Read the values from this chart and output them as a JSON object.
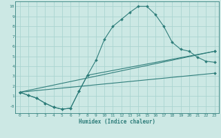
{
  "xlabel": "Humidex (Indice chaleur)",
  "bg_color": "#cce8e4",
  "grid_color": "#aad4d0",
  "line_color": "#2e7d7a",
  "xlim": [
    -0.5,
    23.5
  ],
  "ylim": [
    -0.7,
    10.5
  ],
  "xticks": [
    0,
    1,
    2,
    3,
    4,
    5,
    6,
    7,
    8,
    9,
    10,
    11,
    12,
    13,
    14,
    15,
    16,
    17,
    18,
    19,
    20,
    21,
    22,
    23
  ],
  "yticks": [
    0,
    1,
    2,
    3,
    4,
    5,
    6,
    7,
    8,
    9,
    10
  ],
  "curve1_x": [
    0,
    1,
    2,
    3,
    4,
    5,
    6,
    7,
    8,
    9,
    10,
    11,
    12,
    13,
    14,
    15,
    16,
    17,
    18,
    19,
    20,
    21,
    22,
    23
  ],
  "curve1_y": [
    1.4,
    1.1,
    0.8,
    0.3,
    -0.1,
    -0.3,
    -0.2,
    1.5,
    3.1,
    4.6,
    6.7,
    8.0,
    8.7,
    9.4,
    10.0,
    10.0,
    9.2,
    8.0,
    6.4,
    5.7,
    5.5,
    4.9,
    4.5,
    4.4
  ],
  "curve2_x": [
    0,
    1,
    2,
    3,
    4,
    5,
    6,
    7,
    8,
    23
  ],
  "curve2_y": [
    1.4,
    1.1,
    0.8,
    0.3,
    -0.1,
    -0.3,
    -0.2,
    1.5,
    3.1,
    5.5
  ],
  "curve3_x": [
    0,
    23
  ],
  "curve3_y": [
    1.4,
    5.5
  ],
  "curve4_x": [
    0,
    23
  ],
  "curve4_y": [
    1.4,
    3.3
  ]
}
